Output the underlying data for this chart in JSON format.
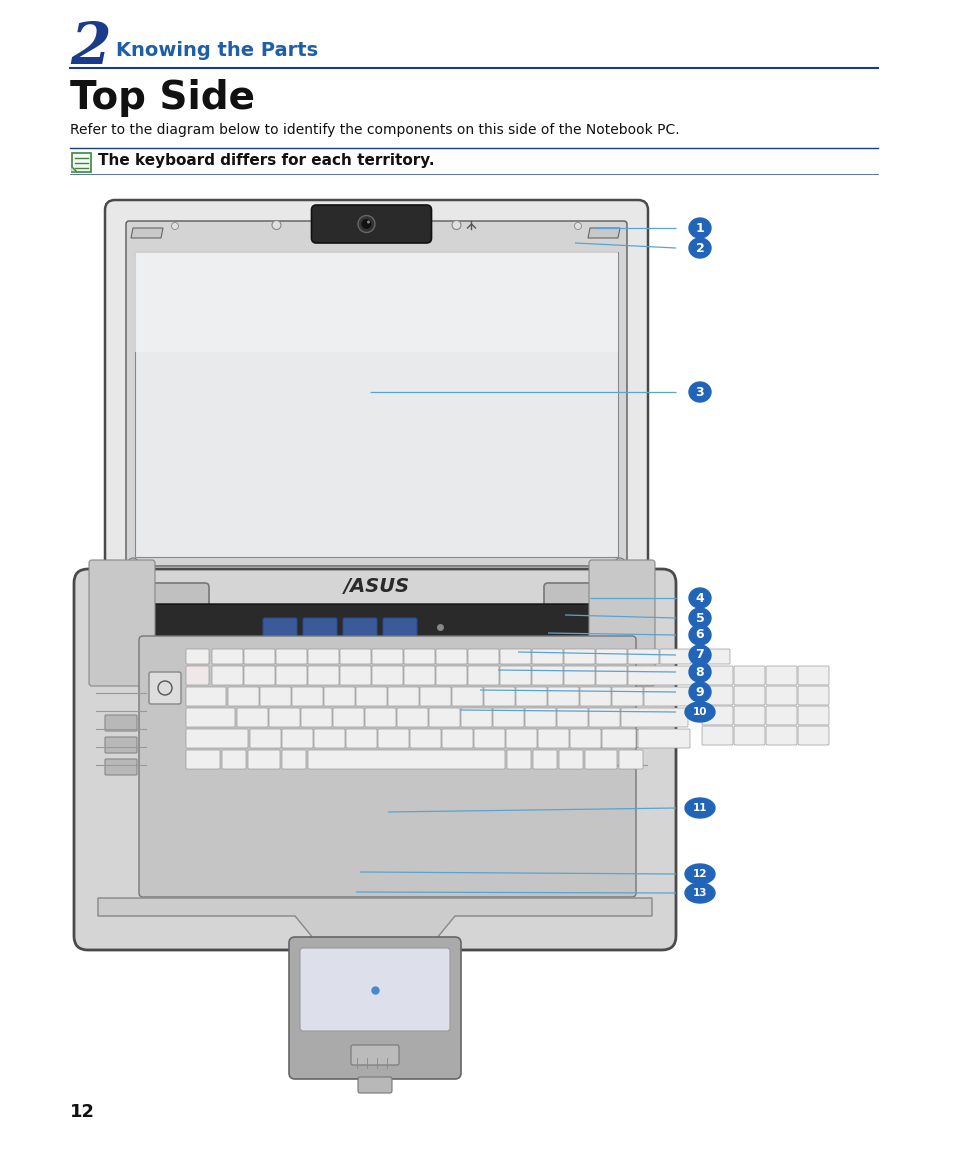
{
  "bg_color": "#ffffff",
  "chapter_number": "2",
  "chapter_title": "Knowing the Parts",
  "section_title": "Top Side",
  "body_text": "Refer to the diagram below to identify the components on this side of the Notebook PC.",
  "note_text": "The keyboard differs for each territory.",
  "page_number": "12",
  "blue_color": "#1e5fa8",
  "dark_blue": "#1a3a8c",
  "label_bg": "#2265b8",
  "line_color": "#5ba3d0",
  "label_nums": [
    "1",
    "2",
    "3",
    "4",
    "5",
    "6",
    "7",
    "8",
    "9",
    "10",
    "11",
    "12",
    "13"
  ],
  "label_positions_x": [
    700,
    700,
    700,
    700,
    700,
    700,
    700,
    700,
    700,
    700,
    700,
    700,
    700
  ],
  "label_positions_y": [
    228,
    248,
    392,
    598,
    618,
    635,
    655,
    672,
    692,
    712,
    808,
    874,
    893
  ],
  "point_x": [
    595,
    575,
    370,
    590,
    565,
    548,
    518,
    498,
    480,
    460,
    388,
    360,
    356
  ],
  "point_y": [
    228,
    243,
    392,
    598,
    615,
    633,
    652,
    670,
    690,
    710,
    812,
    872,
    892
  ]
}
